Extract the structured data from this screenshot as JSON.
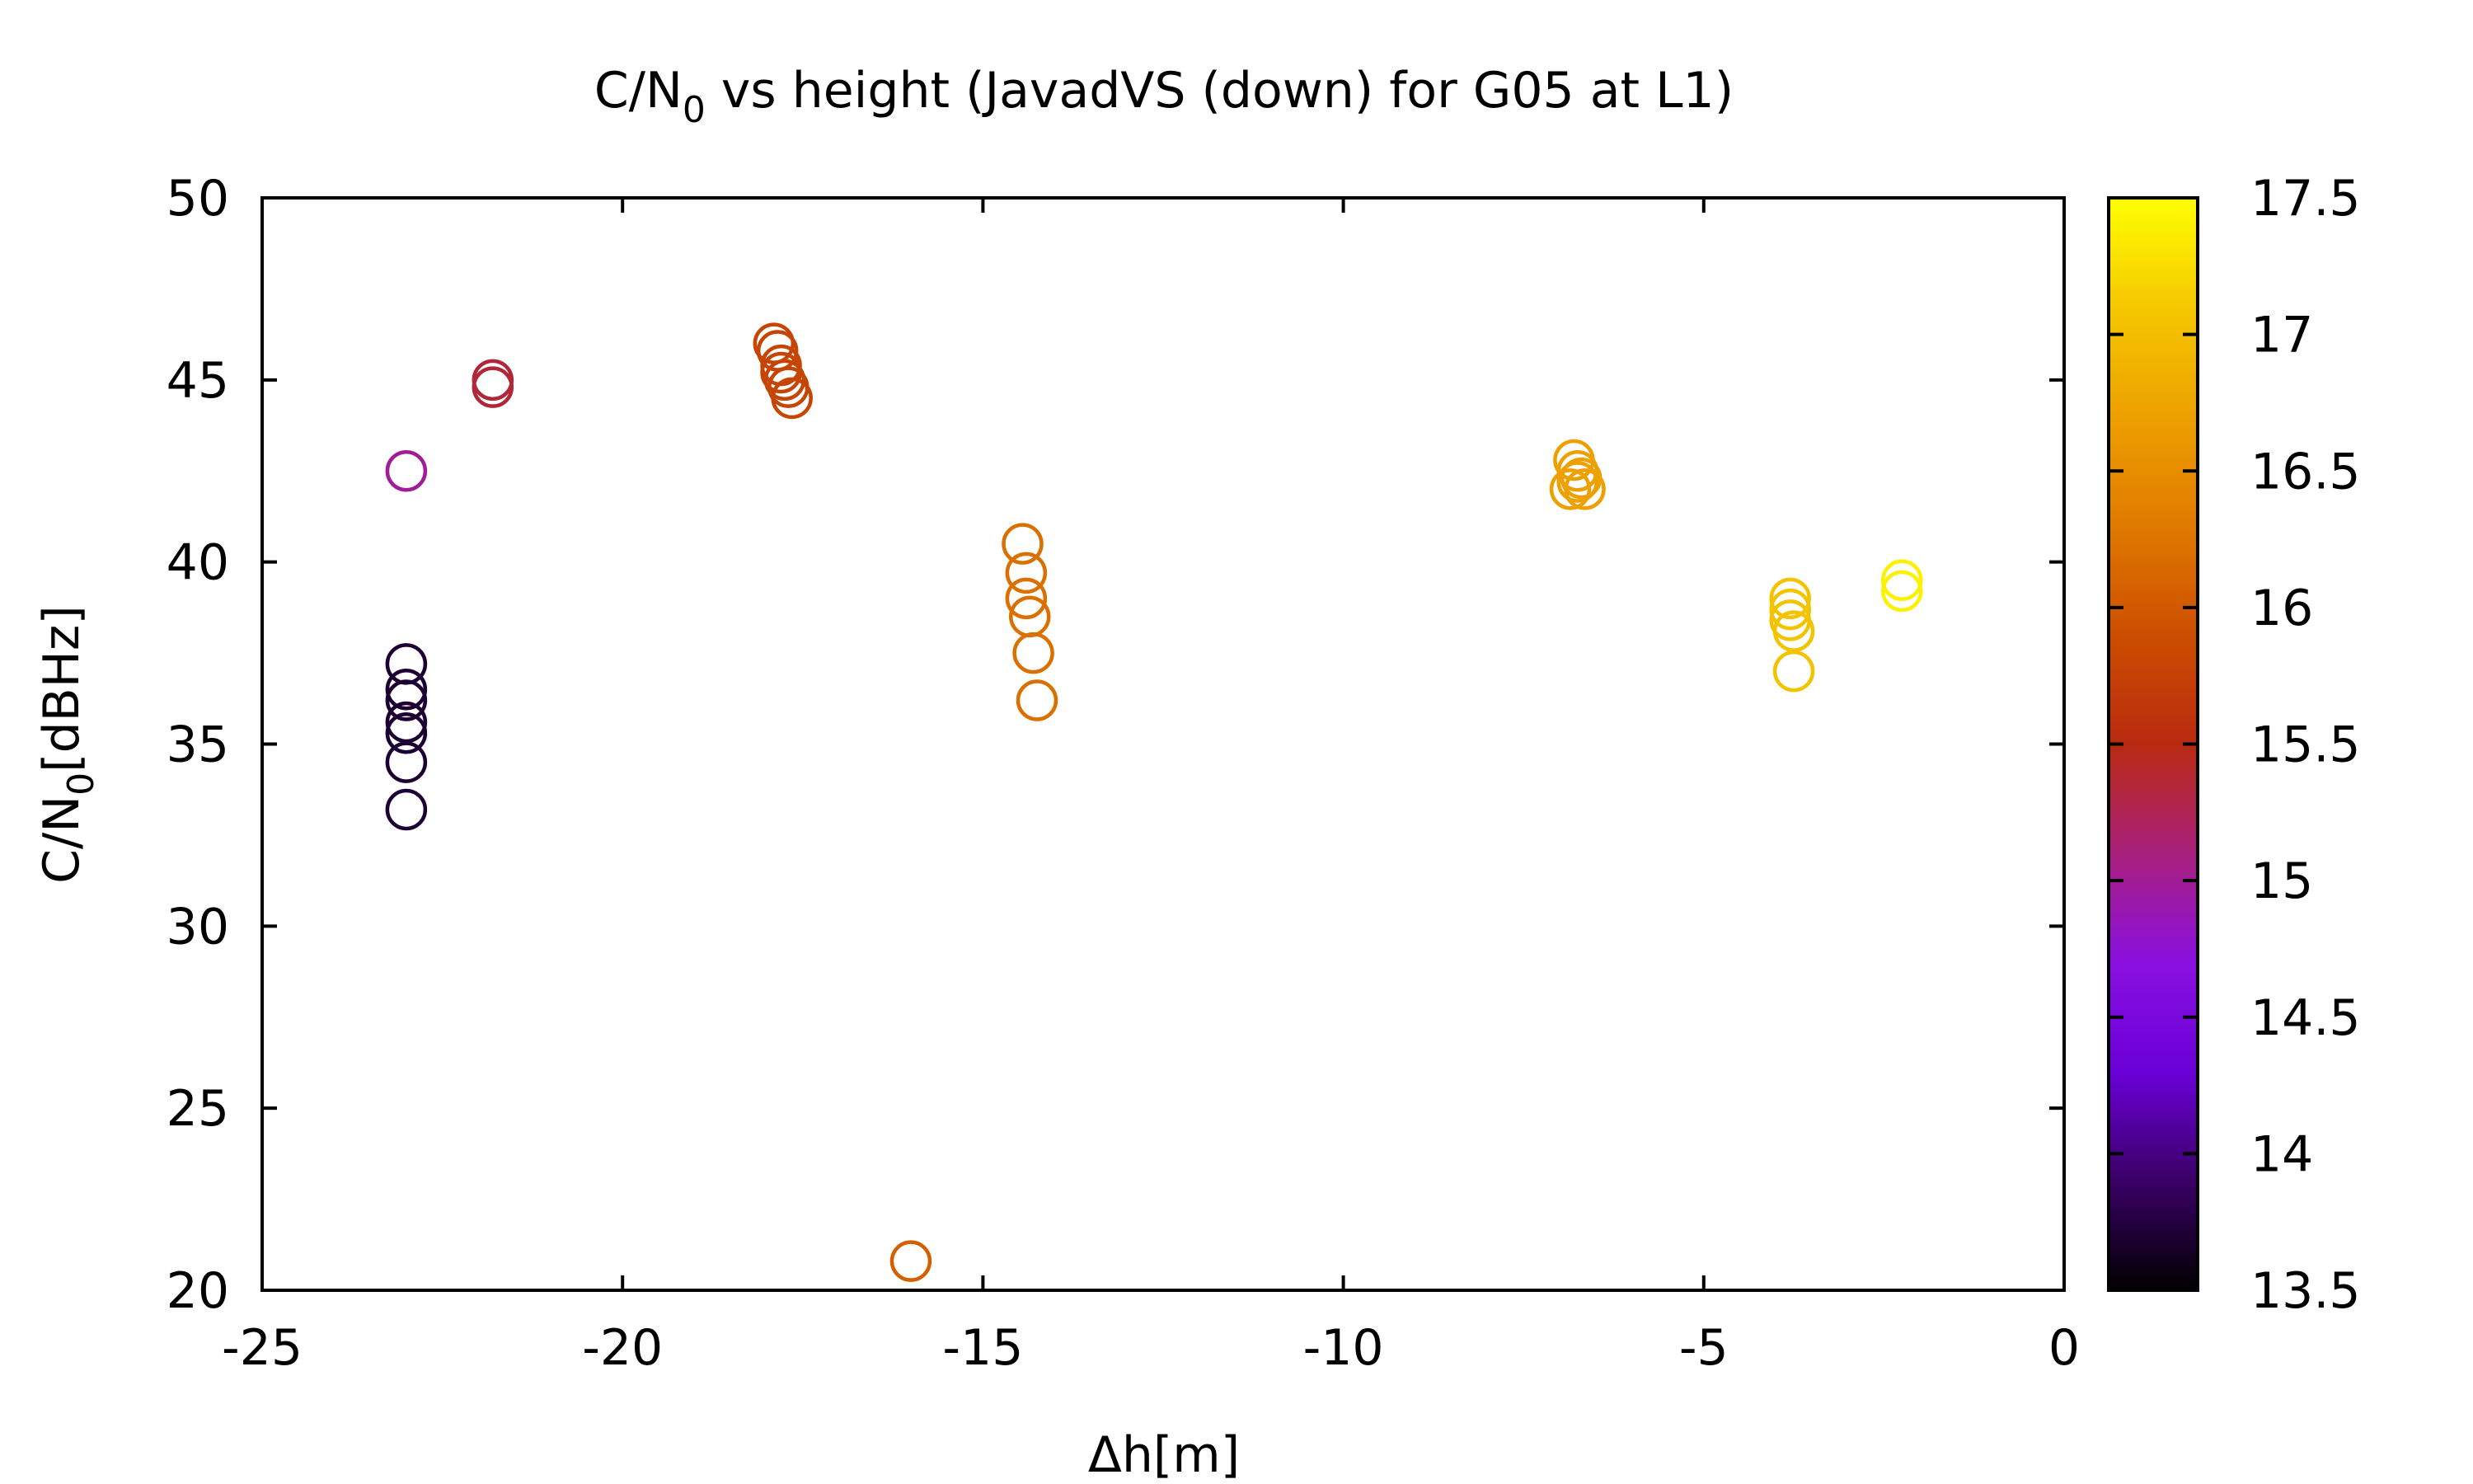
{
  "chart_data": {
    "type": "scatter",
    "title": {
      "prefix": "C/N",
      "subscript": "0",
      "suffix": " vs height (JavadVS (down) for G05 at L1)"
    },
    "xlabel": "Δh[m]",
    "ylabel": {
      "prefix": "C/N",
      "subscript": "0",
      "suffix": "[dBHz]"
    },
    "xlim": [
      -25,
      0
    ],
    "ylim": [
      20,
      50
    ],
    "x_ticks": [
      "-25",
      "-20",
      "-15",
      "-10",
      "-5",
      "0"
    ],
    "y_ticks": [
      "20",
      "25",
      "30",
      "35",
      "40",
      "45",
      "50"
    ],
    "colorbar": {
      "range": [
        13.5,
        17.5
      ],
      "ticks": [
        "13.5",
        "14",
        "14.5",
        "15",
        "15.5",
        "16",
        "16.5",
        "17",
        "17.5"
      ],
      "colormap": [
        "#000000",
        "#3a0066",
        "#6a00d8",
        "#8a10e0",
        "#a8207c",
        "#b82a10",
        "#cc4e00",
        "#e07a00",
        "#eda000",
        "#f5c800",
        "#ffff00"
      ]
    },
    "marker": "open-circle",
    "grid": false,
    "points": [
      {
        "x": -23.0,
        "y": 37.2,
        "c": 13.7
      },
      {
        "x": -23.0,
        "y": 36.5,
        "c": 13.7
      },
      {
        "x": -23.0,
        "y": 36.2,
        "c": 13.7
      },
      {
        "x": -23.0,
        "y": 35.6,
        "c": 13.7
      },
      {
        "x": -23.0,
        "y": 35.3,
        "c": 13.7
      },
      {
        "x": -23.0,
        "y": 34.5,
        "c": 13.7
      },
      {
        "x": -23.0,
        "y": 33.2,
        "c": 13.7
      },
      {
        "x": -23.0,
        "y": 42.5,
        "c": 15.0
      },
      {
        "x": -21.8,
        "y": 45.0,
        "c": 15.35
      },
      {
        "x": -21.8,
        "y": 44.8,
        "c": 15.35
      },
      {
        "x": -17.9,
        "y": 46.0,
        "c": 15.8
      },
      {
        "x": -17.85,
        "y": 45.8,
        "c": 15.8
      },
      {
        "x": -17.8,
        "y": 45.4,
        "c": 15.8
      },
      {
        "x": -17.8,
        "y": 45.2,
        "c": 15.8
      },
      {
        "x": -17.75,
        "y": 45.0,
        "c": 15.8
      },
      {
        "x": -17.7,
        "y": 44.8,
        "c": 15.8
      },
      {
        "x": -17.65,
        "y": 44.5,
        "c": 15.8
      },
      {
        "x": -16.0,
        "y": 20.8,
        "c": 16.05
      },
      {
        "x": -14.45,
        "y": 40.5,
        "c": 16.2
      },
      {
        "x": -14.4,
        "y": 39.7,
        "c": 16.2
      },
      {
        "x": -14.4,
        "y": 39.0,
        "c": 16.2
      },
      {
        "x": -14.35,
        "y": 38.5,
        "c": 16.2
      },
      {
        "x": -14.3,
        "y": 37.5,
        "c": 16.2
      },
      {
        "x": -14.25,
        "y": 36.2,
        "c": 16.2
      },
      {
        "x": -6.8,
        "y": 42.8,
        "c": 16.7
      },
      {
        "x": -6.75,
        "y": 42.5,
        "c": 16.7
      },
      {
        "x": -6.7,
        "y": 42.3,
        "c": 16.7
      },
      {
        "x": -6.85,
        "y": 42.0,
        "c": 16.7
      },
      {
        "x": -6.65,
        "y": 42.0,
        "c": 16.7
      },
      {
        "x": -6.75,
        "y": 42.2,
        "c": 16.7
      },
      {
        "x": -3.8,
        "y": 39.0,
        "c": 17.05
      },
      {
        "x": -3.8,
        "y": 38.7,
        "c": 17.05
      },
      {
        "x": -3.8,
        "y": 38.4,
        "c": 17.05
      },
      {
        "x": -3.75,
        "y": 38.1,
        "c": 17.05
      },
      {
        "x": -3.75,
        "y": 37.0,
        "c": 17.05
      },
      {
        "x": -2.25,
        "y": 39.5,
        "c": 17.4
      },
      {
        "x": -2.25,
        "y": 39.2,
        "c": 17.4
      }
    ]
  }
}
